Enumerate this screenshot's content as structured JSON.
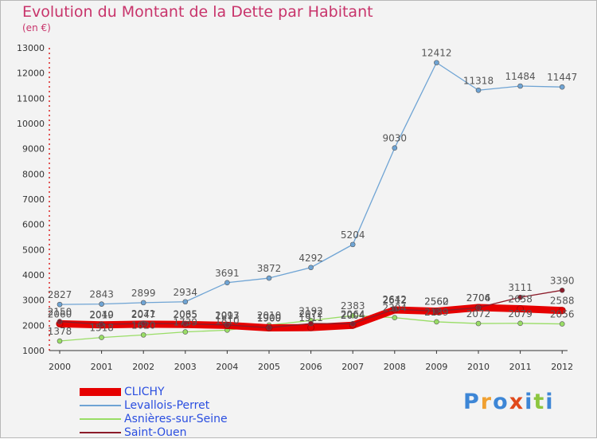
{
  "header": {
    "title": "Evolution du Montant de la Dette par Habitant",
    "subtitle": "(en €)"
  },
  "chart_data": {
    "type": "line",
    "title": "Evolution du Montant de la Dette par Habitant",
    "subtitle": "(en €)",
    "x": [
      2000,
      2001,
      2002,
      2003,
      2004,
      2005,
      2006,
      2007,
      2008,
      2009,
      2010,
      2011,
      2012
    ],
    "ylim": [
      1000,
      13000
    ],
    "yticks": [
      1000,
      2000,
      3000,
      4000,
      5000,
      6000,
      7000,
      8000,
      9000,
      10000,
      11000,
      12000,
      13000
    ],
    "grid": false,
    "legend_position": "bottom-left",
    "series": [
      {
        "name": "CLICHY",
        "color": "#e60000",
        "values": [
          2060,
          2019,
          2047,
          2035,
          1997,
          1900,
          1911,
          2004,
          2612,
          2560,
          2706,
          2658,
          2588
        ]
      },
      {
        "name": "Levallois-Perret",
        "color": "#6fa4d4",
        "values": [
          2827,
          2843,
          2899,
          2934,
          3691,
          3872,
          4292,
          5204,
          9030,
          12412,
          11318,
          11484,
          11447
        ]
      },
      {
        "name": "Asnières-sur-Seine",
        "color": "#99dd66",
        "values": [
          1378,
          1518,
          1620,
          1739,
          1810,
          2010,
          2192,
          2383,
          2304,
          2139,
          2072,
          2079,
          2056
        ]
      },
      {
        "name": "Saint-Ouen",
        "color": "#8c1c2a",
        "values": [
          2150,
          2040,
          2071,
          2065,
          2013,
          1909,
          2072,
          2064,
          2642,
          2562,
          2704,
          3111,
          3390
        ]
      }
    ]
  },
  "logo": {
    "letters": [
      "P",
      "r",
      "o",
      "x",
      "i",
      "t",
      "i"
    ],
    "colors": [
      "#3d86d6",
      "#f0a030",
      "#3d86d6",
      "#e04a1c",
      "#3d86d6",
      "#8cc63f",
      "#3d86d6"
    ]
  }
}
